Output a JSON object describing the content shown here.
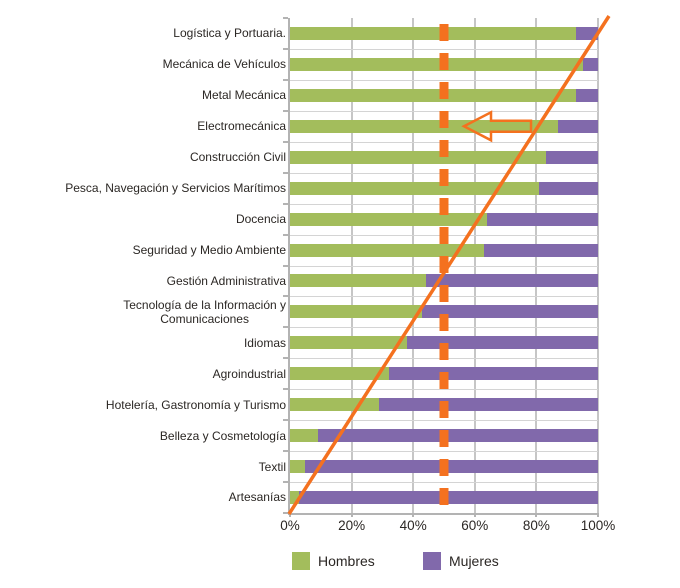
{
  "chart_data": {
    "type": "bar",
    "subtype": "horizontal-stacked-100pct",
    "title": "",
    "categories": [
      "Logística y Portuaria.",
      "Mecánica de Vehículos",
      "Metal Mecánica",
      "Electromecánica",
      "Construcción Civil",
      "Pesca, Navegación y Servicios Marítimos",
      "Docencia",
      "Seguridad  y Medio Ambiente",
      "Gestión Administrativa",
      "Tecnología de la Información y\nComunicaciones",
      "Idiomas",
      "Agroindustrial",
      "Hotelería, Gastronomía y Turismo",
      "Belleza y Cosmetología",
      "Textil",
      "Artesanías"
    ],
    "series": [
      {
        "name": "Hombres",
        "color": "#a3bd5c",
        "values": [
          93,
          95,
          93,
          87,
          83,
          81,
          64,
          63,
          44,
          43,
          38,
          32,
          29,
          9,
          5,
          3
        ]
      },
      {
        "name": "Mujeres",
        "color": "#8169ab",
        "values": [
          7,
          5,
          7,
          13,
          17,
          19,
          36,
          37,
          56,
          57,
          62,
          68,
          71,
          91,
          95,
          97
        ]
      }
    ],
    "x_ticks": [
      "0%",
      "20%",
      "40%",
      "60%",
      "80%",
      "100%"
    ],
    "xlim": [
      0,
      100
    ],
    "grid": true,
    "legend_position": "bottom",
    "annotations": {
      "dashed_vline": {
        "x_percent": 50,
        "color": "#f4711f",
        "style": "thick-dashed"
      },
      "diagonal_line": {
        "description": "orange diagonal from 0% at bottom to 100% at top",
        "color": "#f4711f"
      },
      "arrow": {
        "points_to_category": "Electromecánica",
        "direction": "left",
        "color": "#f4711f",
        "fill": "none"
      }
    }
  },
  "colors": {
    "grid": "#c6c6c6",
    "row_divider": "#d4d4d4",
    "axis": "#b3b3b3",
    "text": "#2b2724",
    "background": "#ffffff",
    "accent_orange": "#f4711f"
  }
}
